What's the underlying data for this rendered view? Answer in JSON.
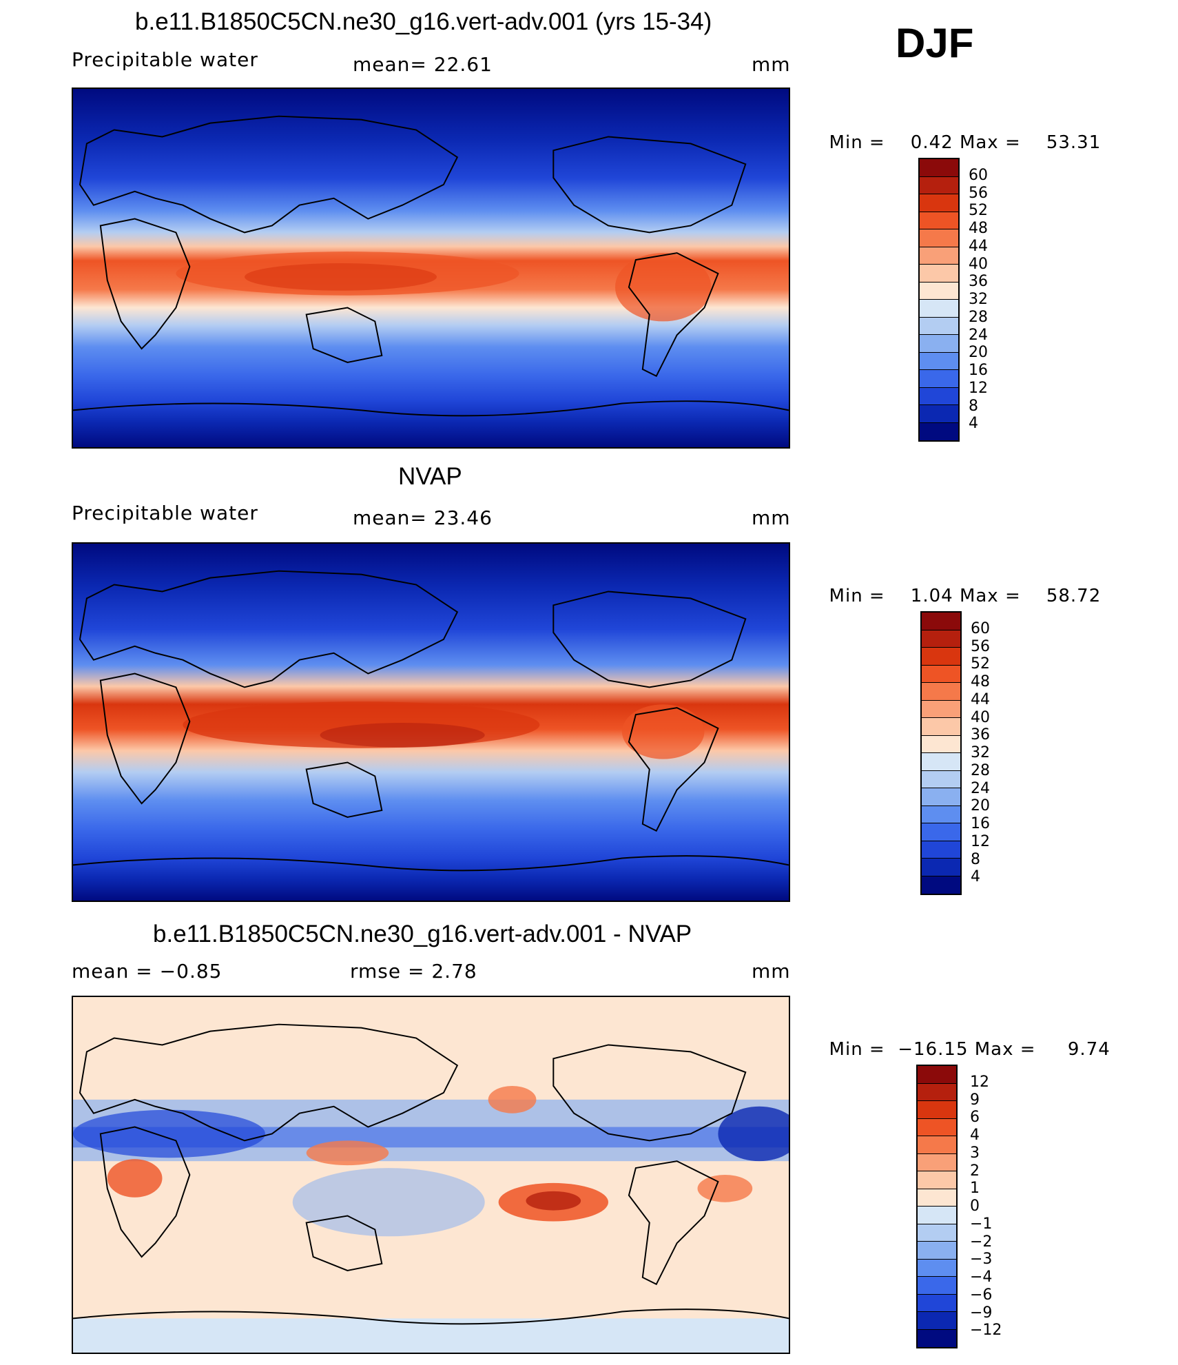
{
  "season": "DJF",
  "panels": [
    {
      "title": "b.e11.B1850C5CN.ne30_g16.vert-adv.001 (yrs 15-34)",
      "left_label": "Precipitable  water",
      "center_label": "mean=   22.61",
      "units": "mm",
      "min_label": "Min",
      "min_value": "0.42",
      "max_label": "Max",
      "max_value": "53.31",
      "field": "model"
    },
    {
      "title": "NVAP",
      "left_label": "Precipitable  water",
      "center_label": "mean=   23.46",
      "units": "mm",
      "min_label": "Min",
      "min_value": "1.04",
      "max_label": "Max",
      "max_value": "58.72",
      "field": "obs"
    },
    {
      "title": "b.e11.B1850C5CN.ne30_g16.vert-adv.001 - NVAP",
      "left_label": "mean  =    −0.85",
      "center_label": "rmse  =     2.78",
      "units": "mm",
      "min_label": "Min",
      "min_value": "−16.15",
      "max_label": "Max",
      "max_value": "9.74",
      "field": "diff"
    }
  ],
  "colorbars": {
    "absolute": {
      "labels": [
        "60",
        "56",
        "52",
        "48",
        "44",
        "40",
        "36",
        "32",
        "28",
        "24",
        "20",
        "16",
        "12",
        "8",
        "4"
      ],
      "colors": [
        "#8b0a0a",
        "#b5200e",
        "#d9360f",
        "#ee5425",
        "#f5794a",
        "#f9a078",
        "#fcc8a8",
        "#fde6d2",
        "#d6e6f6",
        "#b3cdf2",
        "#8ab0f0",
        "#5e8ef0",
        "#3a68ea",
        "#2046d8",
        "#0b28b2",
        "#000a80"
      ]
    },
    "difference": {
      "labels": [
        "12",
        "9",
        "6",
        "4",
        "3",
        "2",
        "1",
        "0",
        "−1",
        "−2",
        "−3",
        "−4",
        "−6",
        "−9",
        "−12"
      ],
      "colors": [
        "#8b0a0a",
        "#b5200e",
        "#d9360f",
        "#ee5425",
        "#f5794a",
        "#f9a078",
        "#fcc8a8",
        "#fde6d2",
        "#d6e6f6",
        "#b3cdf2",
        "#8ab0f0",
        "#5e8ef0",
        "#3a68ea",
        "#2046d8",
        "#0b28b2",
        "#000a80"
      ]
    }
  }
}
